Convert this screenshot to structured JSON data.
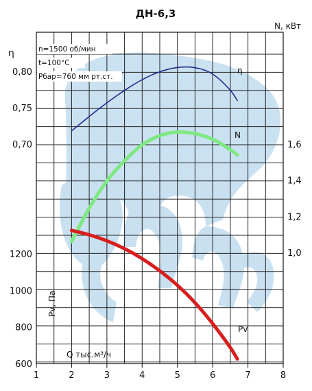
{
  "chart_data": {
    "type": "line",
    "title": "ДН-6,3",
    "x_axis": {
      "label": "Q тыс.м³/ч",
      "range": [
        1,
        8
      ],
      "ticks": [
        "1",
        "2",
        "3",
        "4",
        "5",
        "6",
        "7",
        "8"
      ]
    },
    "eta_axis": {
      "label": "η",
      "ticks": [
        "0,70",
        "0,75",
        "0,80"
      ]
    },
    "n_axis": {
      "label": "N, кВт",
      "ticks": [
        "1,0",
        "1,2",
        "1,4",
        "1,6"
      ]
    },
    "pv_axis": {
      "label": "Pv, Па",
      "ticks": [
        "600",
        "800",
        "1000",
        "1200"
      ]
    },
    "conditions": [
      "n=1500 об/мин",
      "t=100°С",
      "Pбар=760 мм рт.ст."
    ],
    "series": [
      {
        "name": "η",
        "color": "#1f2c8f",
        "x": [
          2.0,
          2.5,
          3.0,
          3.5,
          4.0,
          4.5,
          5.0,
          5.5,
          6.0,
          6.5,
          6.7
        ],
        "y": [
          0.718,
          0.738,
          0.757,
          0.774,
          0.789,
          0.8,
          0.806,
          0.806,
          0.798,
          0.775,
          0.76
        ]
      },
      {
        "name": "N",
        "color": "#7ee882",
        "x": [
          2.0,
          2.5,
          3.0,
          3.5,
          4.0,
          4.5,
          5.0,
          5.5,
          6.0,
          6.5,
          6.7
        ],
        "y": [
          1.06,
          1.25,
          1.4,
          1.51,
          1.6,
          1.65,
          1.67,
          1.66,
          1.63,
          1.57,
          1.54
        ]
      },
      {
        "name": "Pv",
        "color": "#d81e1e",
        "x": [
          2.0,
          2.5,
          3.0,
          3.5,
          4.0,
          4.5,
          5.0,
          5.5,
          6.0,
          6.5,
          6.7
        ],
        "y": [
          1328,
          1305,
          1272,
          1230,
          1175,
          1108,
          1030,
          935,
          820,
          690,
          625
        ]
      }
    ]
  }
}
